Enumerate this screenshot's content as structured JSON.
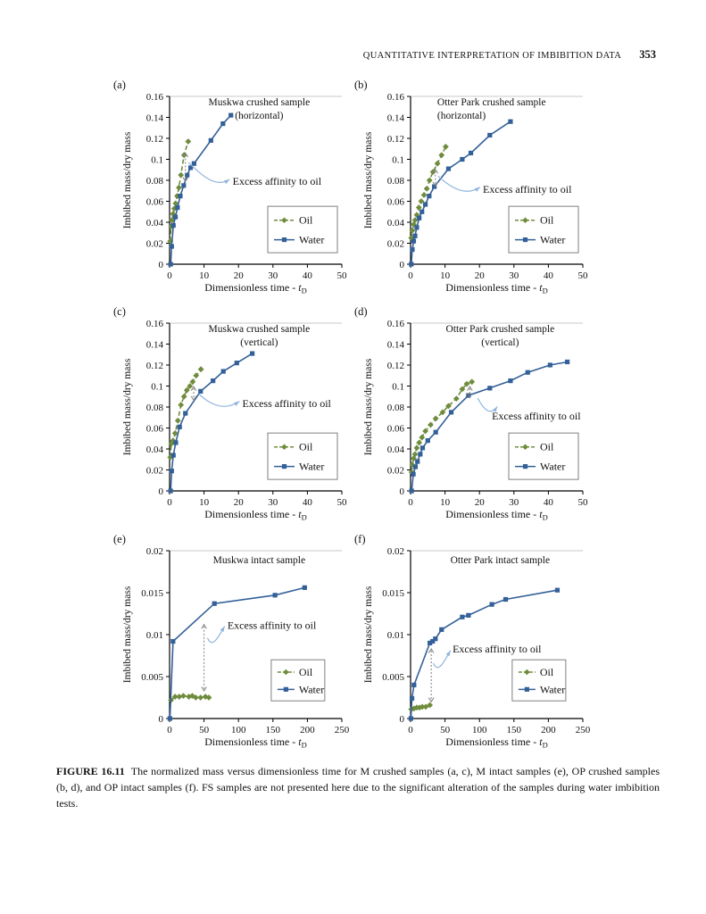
{
  "header": {
    "title": "QUANTITATIVE INTERPRETATION OF IMBIBITION DATA",
    "page_number": "353"
  },
  "caption": {
    "label": "FIGURE 16.11",
    "text": "The normalized mass versus dimensionless time for M crushed samples (a, c), M intact samples (e), OP crushed samples (b, d), and OP intact samples (f). FS samples are not presented here due to the significant alteration of the samples during water imbibition tests."
  },
  "shared": {
    "ylabel": "Imbibed mass/dry mass",
    "xlabel_prefix": "Dimensionless time - ",
    "xlabel_var": "t",
    "xlabel_var_sub": "D",
    "annotation_text": "Excess affinity to oil",
    "legend": {
      "oil": "Oil",
      "water": "Water"
    },
    "colors": {
      "oil": "#6f8c3d",
      "water": "#336098",
      "annotation": "#8fb4dc",
      "arrow": "#7f7f7f",
      "legend_border": "#808080",
      "axis": "#000000",
      "top_gridline": "#c9c9c9"
    }
  },
  "chart_data": [
    {
      "panel": "(a)",
      "type": "line",
      "title_lines": [
        "Muskwa crushed sample",
        "(horizontal)"
      ],
      "title_align": "center",
      "xlim": [
        0,
        50
      ],
      "ylim": [
        0,
        0.16
      ],
      "xticks": [
        0,
        10,
        20,
        30,
        40,
        50
      ],
      "xtick_labels": [
        "0",
        "10",
        "20",
        "30",
        "40",
        "50"
      ],
      "yticks": [
        0,
        0.02,
        0.04,
        0.06,
        0.08,
        0.1,
        0.12,
        0.14,
        0.16
      ],
      "ytick_labels": [
        "0",
        "0.02",
        "0.04",
        "0.06",
        "0.08",
        "0.1",
        "0.12",
        "0.14",
        "0.16"
      ],
      "series": [
        {
          "name": "Oil",
          "points": [
            [
              0.2,
              0.022
            ],
            [
              0.45,
              0.036
            ],
            [
              0.7,
              0.042
            ],
            [
              1,
              0.048
            ],
            [
              1.35,
              0.053
            ],
            [
              1.75,
              0.058
            ],
            [
              2.2,
              0.065
            ],
            [
              2.7,
              0.073
            ],
            [
              3.3,
              0.085
            ],
            [
              4.2,
              0.104
            ],
            [
              5.4,
              0.117
            ]
          ]
        },
        {
          "name": "Water",
          "points": [
            [
              0.3,
              0
            ],
            [
              0.6,
              0.017
            ],
            [
              1.1,
              0.037
            ],
            [
              1.7,
              0.045
            ],
            [
              2.3,
              0.054
            ],
            [
              3.1,
              0.065
            ],
            [
              4.1,
              0.075
            ],
            [
              5.1,
              0.085
            ],
            [
              6.1,
              0.092
            ],
            [
              7.1,
              0.096
            ],
            [
              12,
              0.118
            ],
            [
              15.5,
              0.134
            ],
            [
              17.8,
              0.142
            ]
          ]
        }
      ],
      "annotation": {
        "arrow_x": 4.6,
        "arrow_y": [
          0.079,
          0.106
        ],
        "curve_from": [
          5.5,
          0.097
        ],
        "curve_to": [
          17.4,
          0.081
        ],
        "text_at": [
          18.3,
          0.079
        ]
      },
      "legend_f": [
        0.57,
        0.655
      ],
      "legend_size": [
        78,
        52
      ]
    },
    {
      "panel": "(b)",
      "type": "line",
      "title_lines": [
        "Otter Park crushed sample",
        "(horizontal)"
      ],
      "title_align": "left",
      "xlim": [
        0,
        50
      ],
      "ylim": [
        0,
        0.16
      ],
      "xticks": [
        0,
        10,
        20,
        30,
        40,
        50
      ],
      "xtick_labels": [
        "0",
        "10",
        "20",
        "30",
        "40",
        "50"
      ],
      "yticks": [
        0,
        0.02,
        0.04,
        0.06,
        0.08,
        0.1,
        0.12,
        0.14,
        0.16
      ],
      "ytick_labels": [
        "0",
        "0.02",
        "0.04",
        "0.06",
        "0.08",
        "0.1",
        "0.12",
        "0.14",
        "0.16"
      ],
      "series": [
        {
          "name": "Oil",
          "points": [
            [
              0.2,
              0.025
            ],
            [
              0.5,
              0.032
            ],
            [
              0.9,
              0.038
            ],
            [
              1.3,
              0.042
            ],
            [
              1.8,
              0.047
            ],
            [
              2.4,
              0.054
            ],
            [
              3.1,
              0.06
            ],
            [
              3.9,
              0.066
            ],
            [
              4.7,
              0.072
            ],
            [
              5.5,
              0.08
            ],
            [
              6.5,
              0.088
            ],
            [
              7.8,
              0.096
            ],
            [
              9,
              0.104
            ],
            [
              10.2,
              0.112
            ]
          ]
        },
        {
          "name": "Water",
          "points": [
            [
              0.2,
              0
            ],
            [
              0.5,
              0.014
            ],
            [
              0.9,
              0.022
            ],
            [
              1.3,
              0.027
            ],
            [
              1.8,
              0.035
            ],
            [
              2.5,
              0.044
            ],
            [
              3.3,
              0.05
            ],
            [
              4.3,
              0.057
            ],
            [
              5.4,
              0.065
            ],
            [
              6.9,
              0.074
            ],
            [
              11,
              0.091
            ],
            [
              15,
              0.1
            ],
            [
              17.5,
              0.106
            ],
            [
              23,
              0.123
            ],
            [
              29,
              0.136
            ]
          ]
        }
      ],
      "annotation": {
        "arrow_x": 7.2,
        "arrow_y": [
          0.0745,
          0.0905
        ],
        "curve_from": [
          8,
          0.084
        ],
        "curve_to": [
          20.2,
          0.0735
        ],
        "text_at": [
          21,
          0.0715
        ]
      },
      "legend_f": [
        0.57,
        0.655
      ],
      "legend_size": [
        78,
        52
      ]
    },
    {
      "panel": "(c)",
      "type": "line",
      "title_lines": [
        "Muskwa crushed sample",
        "(vertical)"
      ],
      "title_align": "center",
      "xlim": [
        0,
        50
      ],
      "ylim": [
        0,
        0.16
      ],
      "xticks": [
        0,
        10,
        20,
        30,
        40,
        50
      ],
      "xtick_labels": [
        "0",
        "10",
        "20",
        "30",
        "40",
        "50"
      ],
      "yticks": [
        0,
        0.02,
        0.04,
        0.06,
        0.08,
        0.1,
        0.12,
        0.14,
        0.16
      ],
      "ytick_labels": [
        "0",
        "0.02",
        "0.04",
        "0.06",
        "0.08",
        "0.1",
        "0.12",
        "0.14",
        "0.16"
      ],
      "series": [
        {
          "name": "Oil",
          "points": [
            [
              0.2,
              0.032
            ],
            [
              0.5,
              0.045
            ],
            [
              1,
              0.048
            ],
            [
              1.6,
              0.055
            ],
            [
              2.4,
              0.067
            ],
            [
              3.3,
              0.082
            ],
            [
              4.2,
              0.09
            ],
            [
              5,
              0.096
            ],
            [
              5.9,
              0.1
            ],
            [
              6.7,
              0.104
            ],
            [
              7.7,
              0.11
            ],
            [
              9.1,
              0.116
            ]
          ]
        },
        {
          "name": "Water",
          "points": [
            [
              0.3,
              0
            ],
            [
              0.6,
              0.019
            ],
            [
              1.1,
              0.034
            ],
            [
              1.8,
              0.046
            ],
            [
              2.9,
              0.061
            ],
            [
              4.6,
              0.074
            ],
            [
              9,
              0.095
            ],
            [
              12.6,
              0.105
            ],
            [
              15.6,
              0.114
            ],
            [
              19.5,
              0.122
            ],
            [
              24,
              0.131
            ]
          ]
        }
      ],
      "annotation": {
        "arrow_x": 7,
        "arrow_y": [
          0.0865,
          0.0995
        ],
        "curve_from": [
          8.5,
          0.0925
        ],
        "curve_to": [
          20.3,
          0.0855
        ],
        "text_at": [
          21.1,
          0.0835
        ]
      },
      "legend_f": [
        0.57,
        0.655
      ],
      "legend_size": [
        78,
        52
      ]
    },
    {
      "panel": "(d)",
      "type": "line",
      "title_lines": [
        "Otter Park crushed sample",
        "(vertical)"
      ],
      "title_align": "center",
      "xlim": [
        0,
        50
      ],
      "ylim": [
        0,
        0.16
      ],
      "xticks": [
        0,
        10,
        20,
        30,
        40,
        50
      ],
      "xtick_labels": [
        "0",
        "10",
        "20",
        "30",
        "40",
        "50"
      ],
      "yticks": [
        0,
        0.02,
        0.04,
        0.06,
        0.08,
        0.1,
        0.12,
        0.14,
        0.16
      ],
      "ytick_labels": [
        "0",
        "0.02",
        "0.04",
        "0.06",
        "0.08",
        "0.1",
        "0.12",
        "0.14",
        "0.16"
      ],
      "series": [
        {
          "name": "Oil",
          "points": [
            [
              0.3,
              0.018
            ],
            [
              0.5,
              0.025
            ],
            [
              0.9,
              0.031
            ],
            [
              1.3,
              0.035
            ],
            [
              1.8,
              0.041
            ],
            [
              2.5,
              0.046
            ],
            [
              3.3,
              0.051
            ],
            [
              4.3,
              0.057
            ],
            [
              5.8,
              0.063
            ],
            [
              7.3,
              0.069
            ],
            [
              9.3,
              0.075
            ],
            [
              11,
              0.081
            ],
            [
              13.3,
              0.088
            ],
            [
              15,
              0.097
            ],
            [
              16.3,
              0.102
            ],
            [
              17.8,
              0.104
            ]
          ]
        },
        {
          "name": "Water",
          "points": [
            [
              0.3,
              0
            ],
            [
              0.8,
              0.016
            ],
            [
              1.4,
              0.023
            ],
            [
              2,
              0.028
            ],
            [
              2.8,
              0.035
            ],
            [
              3.5,
              0.041
            ],
            [
              5,
              0.048
            ],
            [
              7.3,
              0.056
            ],
            [
              11.8,
              0.075
            ],
            [
              16.8,
              0.091
            ],
            [
              23,
              0.098
            ],
            [
              29,
              0.105
            ],
            [
              34,
              0.113
            ],
            [
              40.5,
              0.12
            ],
            [
              45.5,
              0.123
            ]
          ]
        }
      ],
      "annotation": {
        "arrow_x": 17.2,
        "arrow_y": [
          0.0895,
          0.0995
        ],
        "curve_from": [
          19.5,
          0.0885
        ],
        "curve_to": [
          25.2,
          0.0805
        ],
        "text_at": [
          23.6,
          0.0715
        ]
      },
      "legend_f": [
        0.57,
        0.655
      ],
      "legend_size": [
        78,
        52
      ]
    },
    {
      "panel": "(e)",
      "type": "line",
      "title_lines": [
        "Muskwa intact sample"
      ],
      "title_align": "center",
      "xlim": [
        0,
        250
      ],
      "ylim": [
        0,
        0.02
      ],
      "xticks": [
        0,
        50,
        100,
        150,
        200,
        250
      ],
      "xtick_labels": [
        "0",
        "50",
        "100",
        "150",
        "200",
        "250"
      ],
      "yticks": [
        0,
        0.005,
        0.01,
        0.015,
        0.02
      ],
      "ytick_labels": [
        "0",
        "0.005",
        "0.01",
        "0.015",
        "0.02"
      ],
      "series": [
        {
          "name": "Oil",
          "points": [
            [
              2,
              0.0022
            ],
            [
              8,
              0.0026
            ],
            [
              14,
              0.0026
            ],
            [
              20,
              0.0027
            ],
            [
              28,
              0.0026
            ],
            [
              33,
              0.0027
            ],
            [
              38,
              0.0025
            ],
            [
              45,
              0.0025
            ],
            [
              52,
              0.0026
            ],
            [
              57,
              0.0025
            ]
          ]
        },
        {
          "name": "Water",
          "points": [
            [
              0.5,
              0
            ],
            [
              5,
              0.0092
            ],
            [
              65,
              0.0137
            ],
            [
              153,
              0.0147
            ],
            [
              196,
              0.0156
            ]
          ]
        }
      ],
      "annotation": {
        "arrow_x": 50,
        "arrow_y": [
          0.0033,
          0.0112
        ],
        "curve_from": [
          55,
          0.0096
        ],
        "curve_to": [
          80,
          0.011
        ],
        "text_at": [
          84,
          0.0111
        ]
      },
      "legend_f": [
        0.59,
        0.65
      ],
      "legend_size": [
        60,
        46
      ]
    },
    {
      "panel": "(f)",
      "type": "line",
      "title_lines": [
        "Otter Park intact sample"
      ],
      "title_align": "center",
      "xlim": [
        0,
        250
      ],
      "ylim": [
        0,
        0.02
      ],
      "xticks": [
        0,
        50,
        100,
        150,
        200,
        250
      ],
      "xtick_labels": [
        "0",
        "50",
        "100",
        "150",
        "200",
        "250"
      ],
      "yticks": [
        0,
        0.005,
        0.01,
        0.015,
        0.02
      ],
      "ytick_labels": [
        "0",
        "0.005",
        "0.01",
        "0.015",
        "0.02"
      ],
      "series": [
        {
          "name": "Oil",
          "points": [
            [
              1,
              0.0011
            ],
            [
              5,
              0.0012
            ],
            [
              9,
              0.0013
            ],
            [
              13,
              0.0013
            ],
            [
              17,
              0.0014
            ],
            [
              22,
              0.0014
            ],
            [
              28,
              0.0016
            ]
          ]
        },
        {
          "name": "Water",
          "points": [
            [
              0.5,
              0
            ],
            [
              2,
              0.0024
            ],
            [
              5,
              0.004
            ],
            [
              28,
              0.009
            ],
            [
              32,
              0.0092
            ],
            [
              36,
              0.0095
            ],
            [
              45,
              0.0106
            ],
            [
              75,
              0.0121
            ],
            [
              84,
              0.0123
            ],
            [
              118,
              0.0136
            ],
            [
              138,
              0.0142
            ],
            [
              213,
              0.0153
            ]
          ]
        }
      ],
      "annotation": {
        "arrow_x": 30,
        "arrow_y": [
          0.002,
          0.0083
        ],
        "curve_from": [
          33,
          0.0066
        ],
        "curve_to": [
          58,
          0.0081
        ],
        "text_at": [
          61,
          0.0083
        ]
      },
      "legend_f": [
        0.59,
        0.65
      ],
      "legend_size": [
        60,
        46
      ]
    }
  ]
}
